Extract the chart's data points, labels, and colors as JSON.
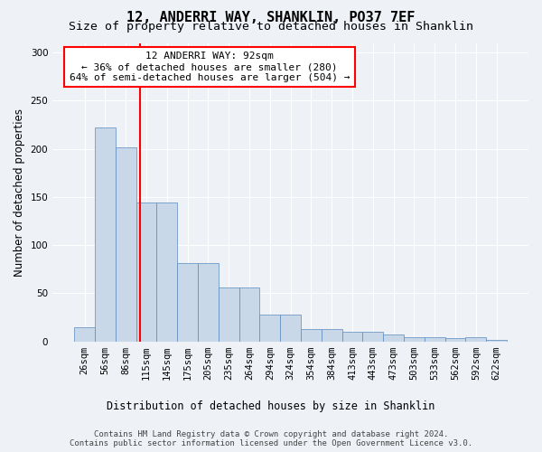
{
  "title1": "12, ANDERRI WAY, SHANKLIN, PO37 7EF",
  "title2": "Size of property relative to detached houses in Shanklin",
  "xlabel": "Distribution of detached houses by size in Shanklin",
  "ylabel": "Number of detached properties",
  "bar_values": [
    15,
    222,
    202,
    144,
    144,
    81,
    81,
    56,
    56,
    28,
    28,
    13,
    13,
    10,
    10,
    7,
    4,
    4,
    3,
    4,
    2
  ],
  "bin_labels": [
    "26sqm",
    "56sqm",
    "86sqm",
    "115sqm",
    "145sqm",
    "175sqm",
    "205sqm",
    "235sqm",
    "264sqm",
    "294sqm",
    "324sqm",
    "354sqm",
    "384sqm",
    "413sqm",
    "443sqm",
    "473sqm",
    "503sqm",
    "533sqm",
    "562sqm",
    "592sqm",
    "622sqm"
  ],
  "bar_color": "#c8d8e8",
  "bar_edge_color": "#5a8abf",
  "bar_width": 1.0,
  "red_line_x": 2.7,
  "ylim": [
    0,
    310
  ],
  "yticks": [
    0,
    50,
    100,
    150,
    200,
    250,
    300
  ],
  "annotation_text": "12 ANDERRI WAY: 92sqm\n← 36% of detached houses are smaller (280)\n64% of semi-detached houses are larger (504) →",
  "annotation_box_color": "white",
  "annotation_box_edge": "red",
  "footer_text": "Contains HM Land Registry data © Crown copyright and database right 2024.\nContains public sector information licensed under the Open Government Licence v3.0.",
  "background_color": "#eef2f7",
  "grid_color": "white",
  "title1_fontsize": 11,
  "title2_fontsize": 9.5,
  "xlabel_fontsize": 8.5,
  "ylabel_fontsize": 8.5,
  "tick_fontsize": 7.5,
  "annotation_fontsize": 8,
  "footer_fontsize": 6.5
}
